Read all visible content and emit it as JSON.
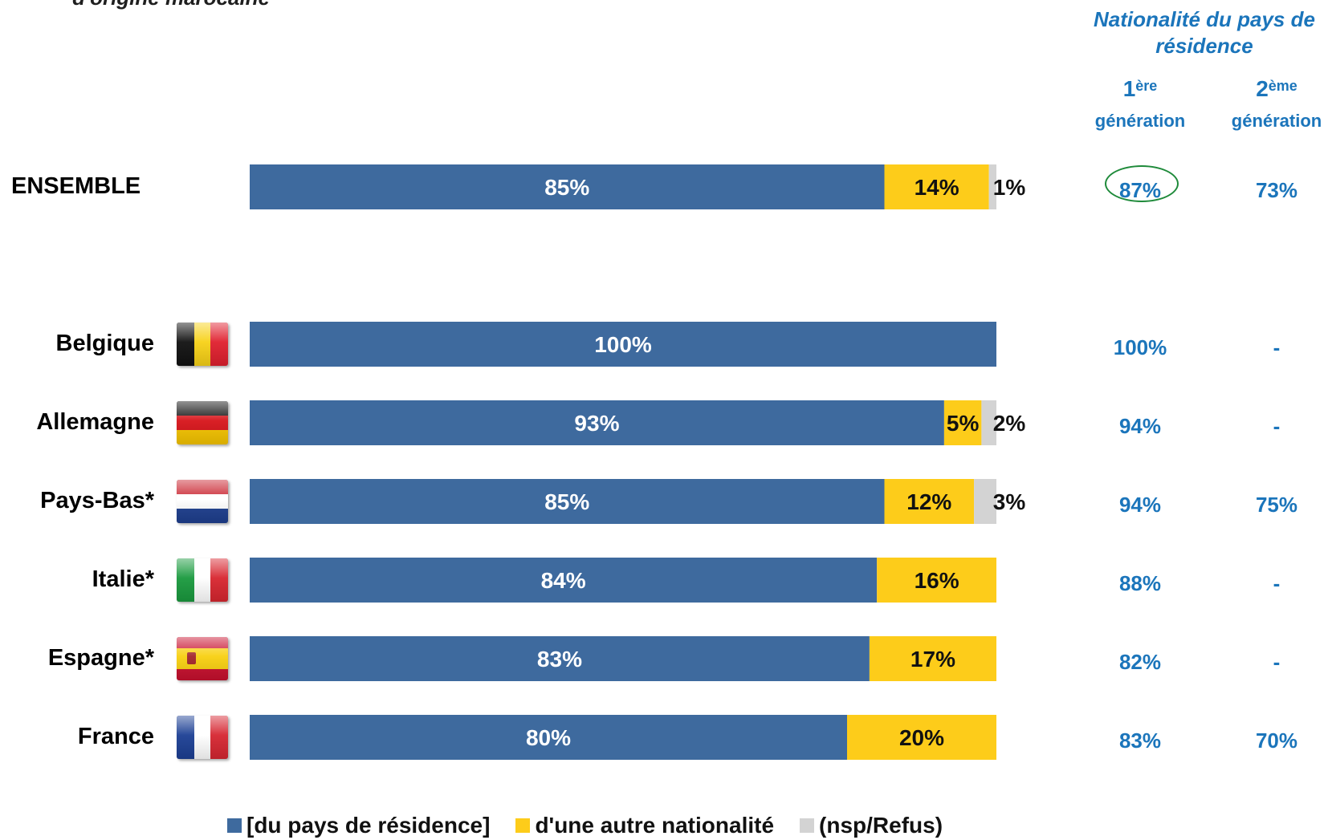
{
  "header": {
    "cut_title": "d'origine marocaine",
    "side_title": "Nationalité du pays de résidence",
    "gen1_num": "1",
    "gen1_sup": "ère",
    "gen1_word": "génération",
    "gen2_num": "2",
    "gen2_sup": "ème",
    "gen2_word": "génération"
  },
  "colors": {
    "resident": "#3e6a9e",
    "other": "#fdcc1a",
    "nsp": "#d3d3d3",
    "accent": "#1b75bb",
    "circle": "#1e8a3a"
  },
  "chart_data": {
    "type": "bar",
    "orientation": "horizontal",
    "stacked": true,
    "categories": [
      "ENSEMBLE",
      "Belgique",
      "Allemagne",
      "Pays-Bas*",
      "Italie*",
      "Espagne*",
      "France"
    ],
    "series": [
      {
        "name": "[du pays de résidence]",
        "values": [
          85,
          100,
          93,
          85,
          84,
          83,
          80
        ]
      },
      {
        "name": "d'une autre nationalité",
        "values": [
          14,
          0,
          5,
          12,
          16,
          17,
          20
        ]
      },
      {
        "name": "(nsp/Refus)",
        "values": [
          1,
          0,
          2,
          3,
          0,
          0,
          0
        ]
      }
    ],
    "data_labels": [
      [
        "85%",
        "14%",
        "1%"
      ],
      [
        "100%",
        "",
        ""
      ],
      [
        "93%",
        "5%",
        "2%"
      ],
      [
        "85%",
        "12%",
        "3%"
      ],
      [
        "84%",
        "16%",
        ""
      ],
      [
        "83%",
        "17%",
        ""
      ],
      [
        "80%",
        "20%",
        ""
      ]
    ],
    "xlim": [
      0,
      100
    ],
    "legend_position": "bottom"
  },
  "generation": {
    "first": [
      "87%",
      "100%",
      "94%",
      "94%",
      "88%",
      "82%",
      "83%"
    ],
    "second": [
      "73%",
      "-",
      "-",
      "75%",
      "-",
      "-",
      "70%"
    ],
    "highlighted": "87%"
  },
  "flags": {
    "Belgique": "flag-belgium-icon",
    "Allemagne": "flag-germany-icon",
    "Pays-Bas*": "flag-netherlands-icon",
    "Italie*": "flag-italy-icon",
    "Espagne*": "flag-spain-icon",
    "France": "flag-france-icon"
  },
  "legend": [
    "[du pays de résidence]",
    "d'une autre nationalité",
    "(nsp/Refus)"
  ]
}
